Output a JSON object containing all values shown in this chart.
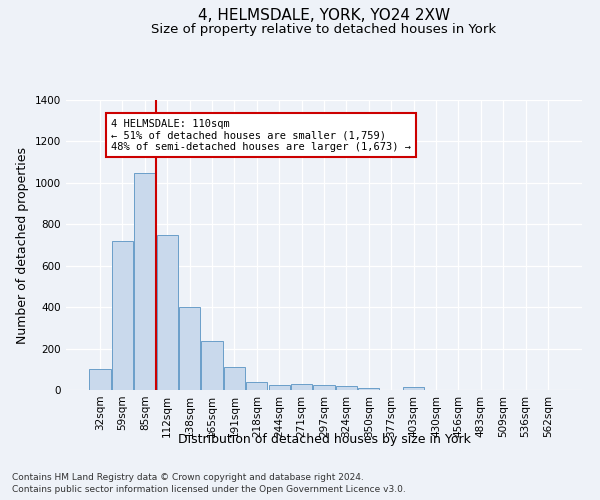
{
  "title": "4, HELMSDALE, YORK, YO24 2XW",
  "subtitle": "Size of property relative to detached houses in York",
  "xlabel": "Distribution of detached houses by size in York",
  "ylabel": "Number of detached properties",
  "categories": [
    "32sqm",
    "59sqm",
    "85sqm",
    "112sqm",
    "138sqm",
    "165sqm",
    "191sqm",
    "218sqm",
    "244sqm",
    "271sqm",
    "297sqm",
    "324sqm",
    "350sqm",
    "377sqm",
    "403sqm",
    "430sqm",
    "456sqm",
    "483sqm",
    "509sqm",
    "536sqm",
    "562sqm"
  ],
  "values": [
    100,
    720,
    1050,
    750,
    400,
    235,
    110,
    40,
    25,
    30,
    25,
    20,
    10,
    0,
    15,
    0,
    0,
    0,
    0,
    0,
    0
  ],
  "bar_color": "#c9d9ec",
  "bar_edge_color": "#6a9ec9",
  "vline_color": "#cc0000",
  "annotation_text": "4 HELMSDALE: 110sqm\n← 51% of detached houses are smaller (1,759)\n48% of semi-detached houses are larger (1,673) →",
  "annotation_box_color": "#ffffff",
  "annotation_box_edge": "#cc0000",
  "ylim": [
    0,
    1400
  ],
  "yticks": [
    0,
    200,
    400,
    600,
    800,
    1000,
    1200,
    1400
  ],
  "footer1": "Contains HM Land Registry data © Crown copyright and database right 2024.",
  "footer2": "Contains public sector information licensed under the Open Government Licence v3.0.",
  "bg_color": "#eef2f8",
  "plot_bg_color": "#eef2f8",
  "title_fontsize": 11,
  "subtitle_fontsize": 9.5,
  "tick_fontsize": 7.5,
  "label_fontsize": 9,
  "footer_fontsize": 6.5
}
